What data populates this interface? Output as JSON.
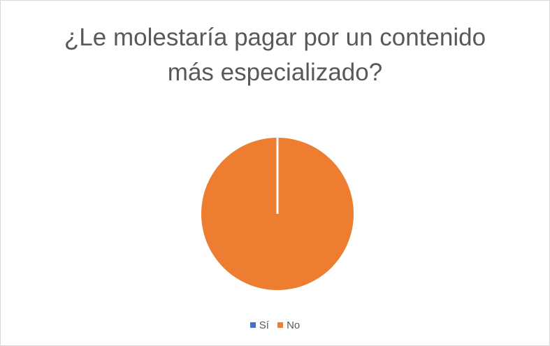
{
  "chart_data": {
    "type": "pie",
    "title_lines": [
      "¿Le molestaría pagar por un contenido",
      "más especializado?"
    ],
    "categories": [
      "Sí",
      "No"
    ],
    "values": [
      0,
      100
    ],
    "colors": [
      "#4472c4",
      "#ed7d31"
    ],
    "legend_position": "bottom"
  }
}
